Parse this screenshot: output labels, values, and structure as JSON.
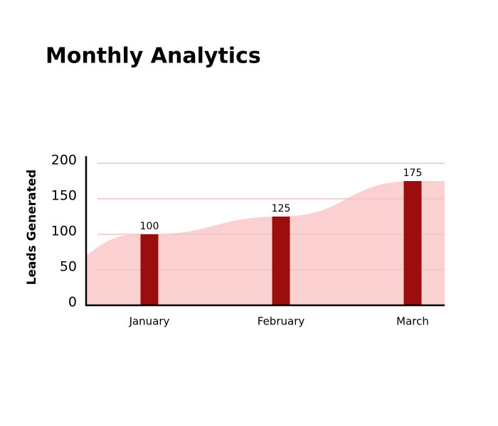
{
  "chart_data": {
    "type": "bar",
    "title": "Monthly Analytics",
    "y_label": "Leads Generated",
    "categories": [
      "January",
      "February",
      "March"
    ],
    "values": [
      100,
      125,
      175
    ],
    "color": "#9b0e0e",
    "area_color": "#fbd0d0",
    "grid_color": "#f0c4c4",
    "ylim": [
      0,
      200
    ],
    "yticks": [
      0,
      50,
      100,
      150,
      200
    ],
    "grid": true
  }
}
